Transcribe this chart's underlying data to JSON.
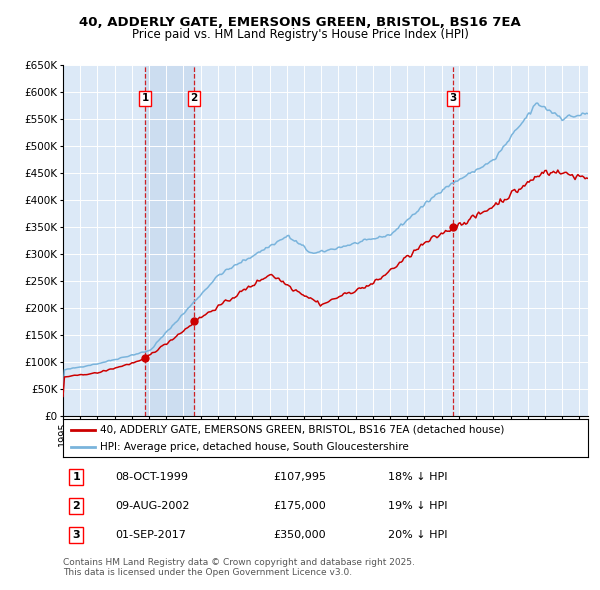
{
  "title_line1": "40, ADDERLY GATE, EMERSONS GREEN, BRISTOL, BS16 7EA",
  "title_line2": "Price paid vs. HM Land Registry's House Price Index (HPI)",
  "background_color": "#ffffff",
  "plot_bg_color": "#dce9f7",
  "grid_color": "#ffffff",
  "hpi_color": "#7ab4dc",
  "price_color": "#cc0000",
  "sale_marker_color": "#cc0000",
  "sale1": {
    "date_num": 1999.77,
    "price": 107995,
    "label": "1",
    "date_str": "08-OCT-1999",
    "price_str": "£107,995",
    "pct_str": "18% ↓ HPI"
  },
  "sale2": {
    "date_num": 2002.6,
    "price": 175000,
    "label": "2",
    "date_str": "09-AUG-2002",
    "price_str": "£175,000",
    "pct_str": "19% ↓ HPI"
  },
  "sale3": {
    "date_num": 2017.67,
    "price": 350000,
    "label": "3",
    "date_str": "01-SEP-2017",
    "price_str": "£350,000",
    "pct_str": "20% ↓ HPI"
  },
  "xmin": 1995.0,
  "xmax": 2025.5,
  "ymin": 0,
  "ymax": 650000,
  "yticks": [
    0,
    50000,
    100000,
    150000,
    200000,
    250000,
    300000,
    350000,
    400000,
    450000,
    500000,
    550000,
    600000,
    650000
  ],
  "ytick_labels": [
    "£0",
    "£50K",
    "£100K",
    "£150K",
    "£200K",
    "£250K",
    "£300K",
    "£350K",
    "£400K",
    "£450K",
    "£500K",
    "£550K",
    "£600K",
    "£650K"
  ],
  "legend_line1": "40, ADDERLY GATE, EMERSONS GREEN, BRISTOL, BS16 7EA (detached house)",
  "legend_line2": "HPI: Average price, detached house, South Gloucestershire",
  "footnote_line1": "Contains HM Land Registry data © Crown copyright and database right 2025.",
  "footnote_line2": "This data is licensed under the Open Government Licence v3.0.",
  "span_color": "#ccddf0",
  "vline_color": "#cc0000"
}
